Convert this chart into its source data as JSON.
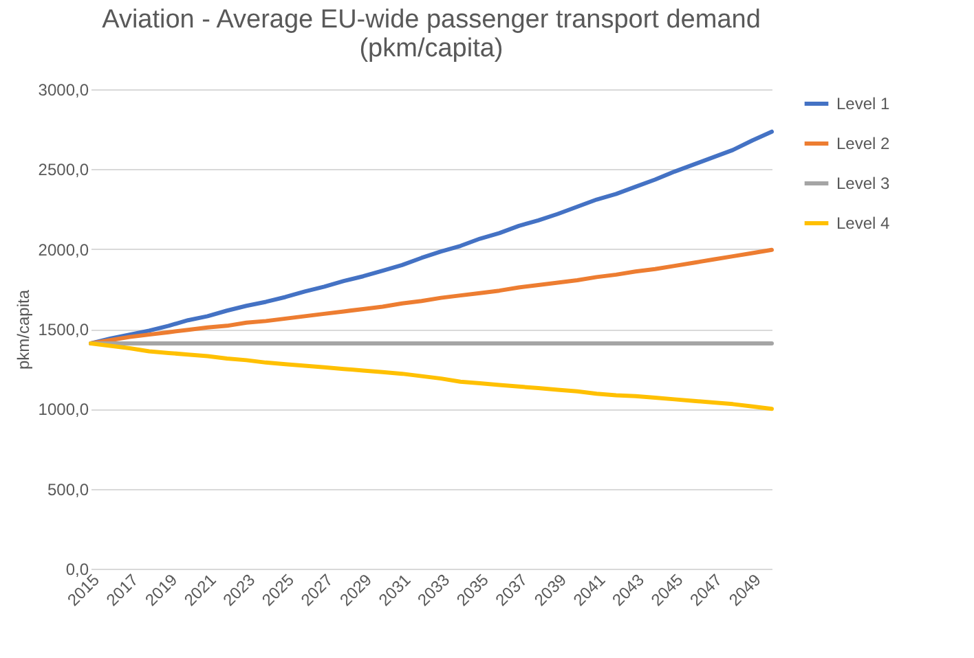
{
  "chart_data": {
    "type": "line",
    "title": "Aviation - Average EU-wide passenger transport demand\n(pkm/capita)",
    "ylabel": "pkm/capita",
    "x": [
      2015,
      2016,
      2017,
      2018,
      2019,
      2020,
      2021,
      2022,
      2023,
      2024,
      2025,
      2026,
      2027,
      2028,
      2029,
      2030,
      2031,
      2032,
      2033,
      2034,
      2035,
      2036,
      2037,
      2038,
      2039,
      2040,
      2041,
      2042,
      2043,
      2044,
      2045,
      2046,
      2047,
      2048,
      2049,
      2050
    ],
    "series": [
      {
        "name": "Level 1",
        "color": "#4472c4",
        "values": [
          1410,
          1440,
          1465,
          1490,
          1520,
          1555,
          1580,
          1615,
          1645,
          1670,
          1700,
          1735,
          1765,
          1800,
          1830,
          1865,
          1900,
          1945,
          1985,
          2020,
          2065,
          2100,
          2145,
          2180,
          2220,
          2265,
          2310,
          2345,
          2390,
          2435,
          2485,
          2530,
          2575,
          2620,
          2680,
          2735
        ]
      },
      {
        "name": "Level 2",
        "color": "#ed7d31",
        "values": [
          1410,
          1430,
          1450,
          1465,
          1480,
          1495,
          1510,
          1520,
          1540,
          1550,
          1565,
          1580,
          1595,
          1610,
          1625,
          1640,
          1660,
          1675,
          1695,
          1710,
          1725,
          1740,
          1760,
          1775,
          1790,
          1805,
          1825,
          1840,
          1860,
          1875,
          1895,
          1915,
          1935,
          1955,
          1975,
          1995
        ]
      },
      {
        "name": "Level 3",
        "color": "#a5a5a5",
        "values": [
          1410,
          1410,
          1410,
          1410,
          1410,
          1410,
          1410,
          1410,
          1410,
          1410,
          1410,
          1410,
          1410,
          1410,
          1410,
          1410,
          1410,
          1410,
          1410,
          1410,
          1410,
          1410,
          1410,
          1410,
          1410,
          1410,
          1410,
          1410,
          1410,
          1410,
          1410,
          1410,
          1410,
          1410,
          1410,
          1410
        ]
      },
      {
        "name": "Level 4",
        "color": "#ffc000",
        "values": [
          1410,
          1395,
          1380,
          1360,
          1350,
          1340,
          1330,
          1315,
          1305,
          1290,
          1280,
          1270,
          1260,
          1250,
          1240,
          1230,
          1220,
          1205,
          1190,
          1170,
          1160,
          1150,
          1140,
          1130,
          1120,
          1110,
          1095,
          1085,
          1080,
          1070,
          1060,
          1050,
          1040,
          1030,
          1015,
          1000
        ]
      }
    ],
    "xlim": [
      2015,
      2050
    ],
    "xticks": [
      2015,
      2017,
      2019,
      2021,
      2023,
      2025,
      2027,
      2029,
      2031,
      2033,
      2035,
      2037,
      2039,
      2041,
      2043,
      2045,
      2047,
      2049
    ],
    "ylim": [
      0,
      3000
    ],
    "yticks": [
      {
        "value": 0,
        "label": "0,0"
      },
      {
        "value": 500,
        "label": "500,0"
      },
      {
        "value": 1000,
        "label": "1000,0"
      },
      {
        "value": 1500,
        "label": "1500,0"
      },
      {
        "value": 2000,
        "label": "2000,0"
      },
      {
        "value": 2500,
        "label": "2500,0"
      },
      {
        "value": 3000,
        "label": "3000,0"
      }
    ],
    "grid": "y",
    "legend": "right",
    "marker": "none",
    "line_style": "solid"
  }
}
